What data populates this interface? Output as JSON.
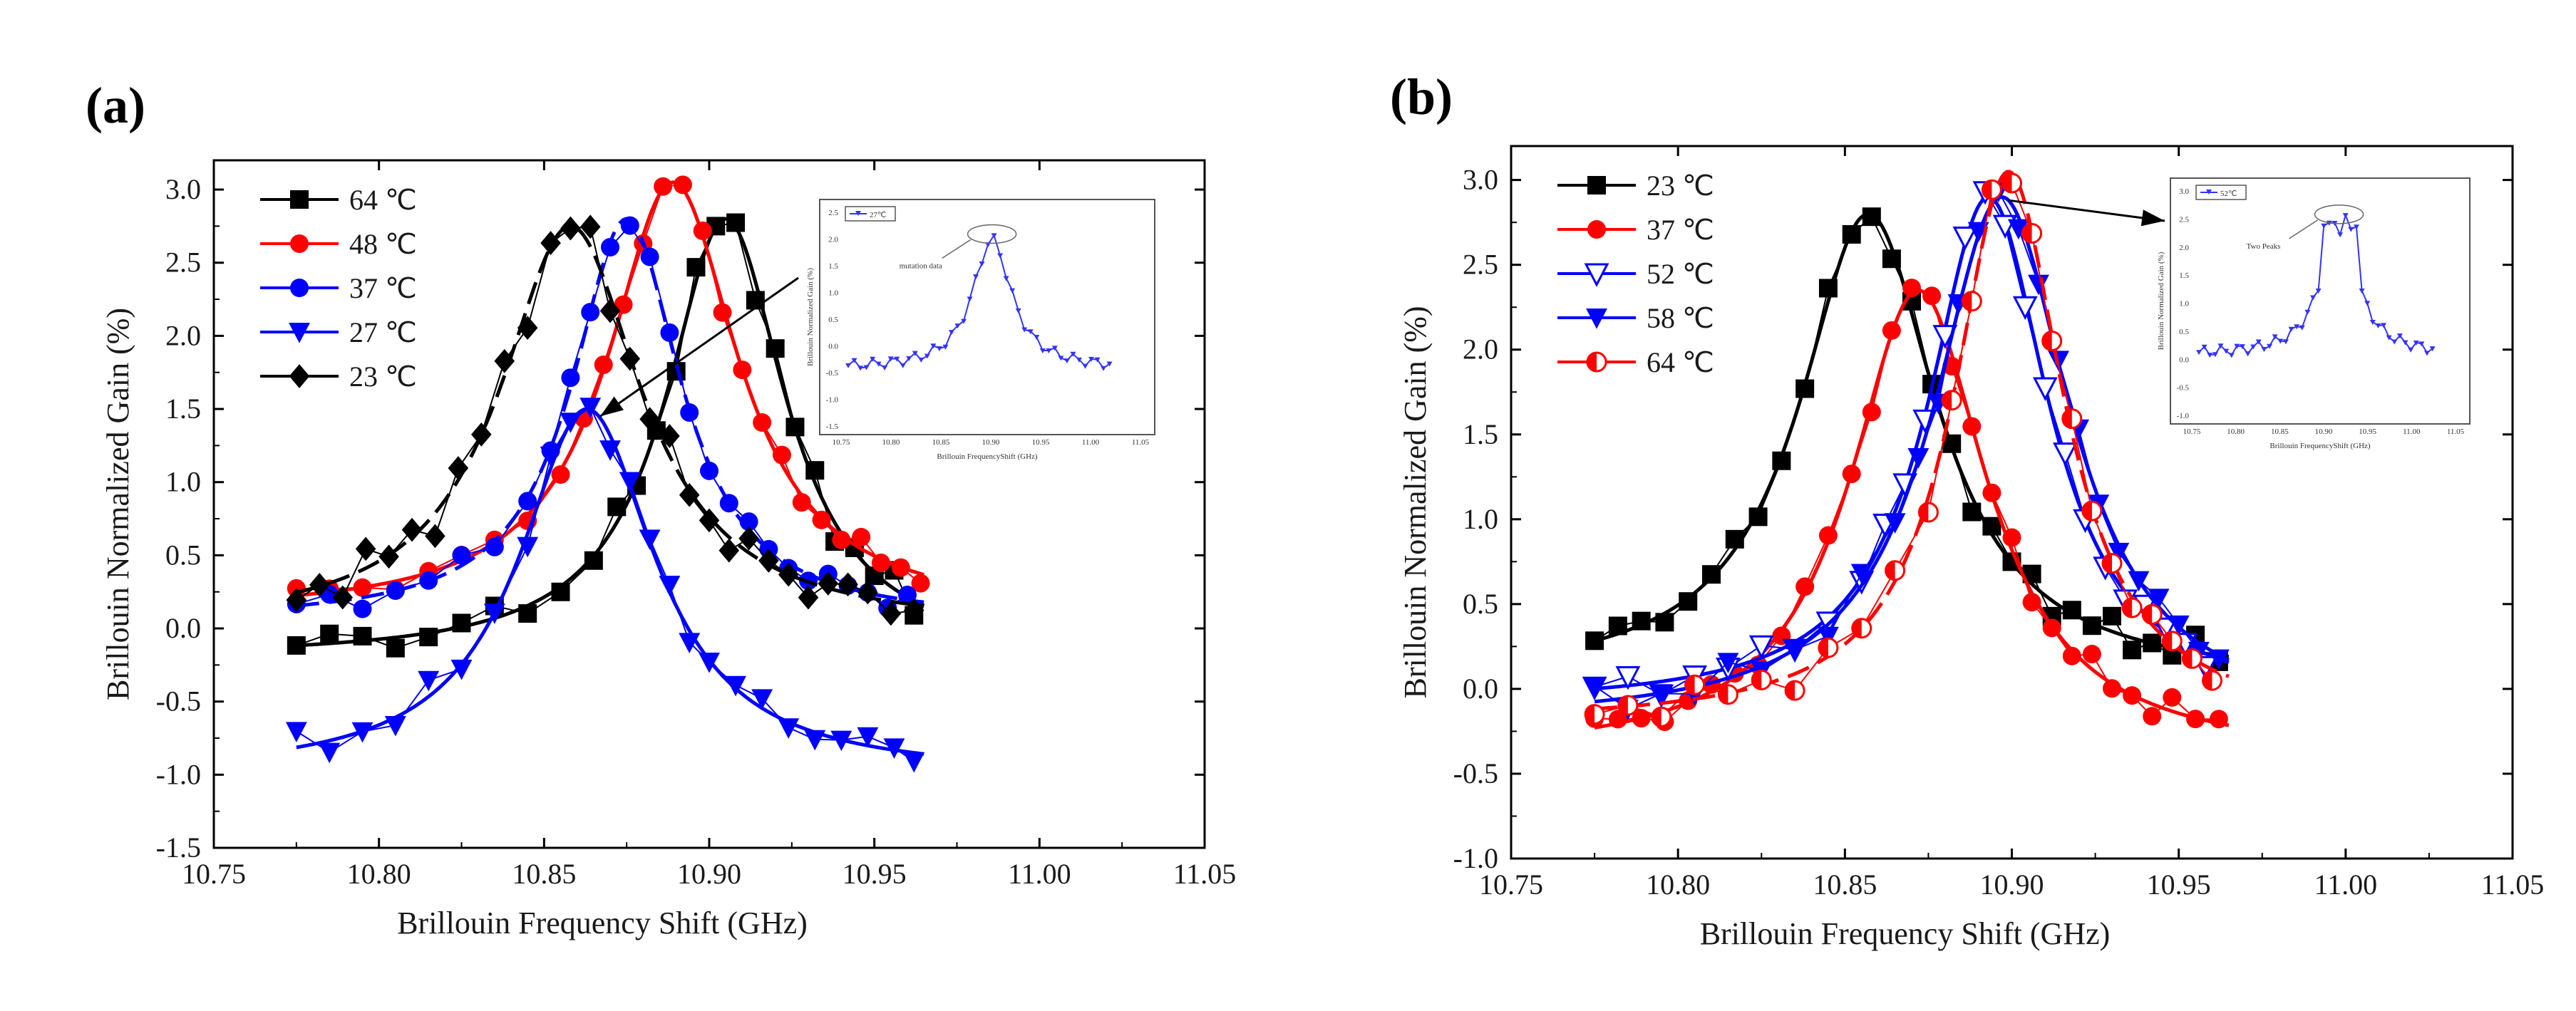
{
  "chart_data": [
    {
      "type": "scatter",
      "panel_label": "(a)",
      "xlabel": "Brillouin Frequency Shift (GHz)",
      "ylabel": "Brillouin Normalized Gain (%)",
      "xlim": [
        10.75,
        11.05
      ],
      "ylim": [
        -1.5,
        3.2
      ],
      "xticks": [
        10.75,
        10.8,
        10.85,
        10.9,
        10.95,
        11.0,
        11.05
      ],
      "xtick_labels": [
        "10.75",
        "10.80",
        "10.85",
        "10.90",
        "10.95",
        "11.00",
        "11.05"
      ],
      "yticks": [
        -1.5,
        -1.0,
        -0.5,
        0.0,
        0.5,
        1.0,
        1.5,
        2.0,
        2.5,
        3.0
      ],
      "ytick_labels": [
        "-1.5",
        "-1.0",
        "-0.5",
        "0.0",
        "0.5",
        "1.0",
        "1.5",
        "2.0",
        "2.5",
        "3.0"
      ],
      "legend_position": "top-left",
      "series": [
        {
          "name": "64 ℃",
          "color": "#000000",
          "marker": "square",
          "fit": {
            "center": 10.905,
            "peak": 2.8,
            "gamma": 0.022,
            "base": -0.2,
            "dash": "solid"
          },
          "noise": 0.14,
          "x": [
            10.775,
            10.785,
            10.795,
            10.805,
            10.815,
            10.825,
            10.835,
            10.845,
            10.855,
            10.865,
            10.872,
            10.878,
            10.884,
            10.89,
            10.896,
            10.902,
            10.908,
            10.914,
            10.92,
            10.926,
            10.932,
            10.938,
            10.944,
            10.95,
            10.956,
            10.962
          ]
        },
        {
          "name": "48 ℃",
          "color": "#ff0000",
          "marker": "circle",
          "fit": {
            "center": 10.889,
            "peak": 3.05,
            "gamma": 0.024,
            "base": 0.1,
            "dash": "solid"
          },
          "noise": 0.09,
          "x": [
            10.775,
            10.785,
            10.795,
            10.805,
            10.815,
            10.825,
            10.835,
            10.845,
            10.855,
            10.862,
            10.868,
            10.874,
            10.88,
            10.886,
            10.892,
            10.898,
            10.904,
            10.91,
            10.916,
            10.922,
            10.928,
            10.934,
            10.94,
            10.946,
            10.952,
            10.958,
            10.964
          ]
        },
        {
          "name": "37 ℃",
          "color": "#0000ff",
          "marker": "circle",
          "fit": {
            "center": 10.875,
            "peak": 2.8,
            "gamma": 0.02,
            "base": 0.05,
            "dash": "dashed"
          },
          "noise": 0.1,
          "x": [
            10.775,
            10.785,
            10.795,
            10.805,
            10.815,
            10.825,
            10.835,
            10.845,
            10.852,
            10.858,
            10.864,
            10.87,
            10.876,
            10.882,
            10.888,
            10.894,
            10.9,
            10.906,
            10.912,
            10.918,
            10.924,
            10.93,
            10.936,
            10.942,
            10.948,
            10.954,
            10.96
          ]
        },
        {
          "name": "27 ℃",
          "color": "#0000ff",
          "marker": "triangle-down",
          "fit": {
            "center": 10.863,
            "peak": 1.5,
            "gamma": 0.025,
            "base": -1.0,
            "dash": "solid"
          },
          "noise": 0.12,
          "x": [
            10.775,
            10.785,
            10.795,
            10.805,
            10.815,
            10.825,
            10.835,
            10.845,
            10.852,
            10.858,
            10.864,
            10.87,
            10.876,
            10.882,
            10.888,
            10.894,
            10.9,
            10.908,
            10.916,
            10.924,
            10.932,
            10.94,
            10.948,
            10.956,
            10.962
          ]
        },
        {
          "name": "23 ℃",
          "color": "#000000",
          "marker": "diamond",
          "fit": {
            "center": 10.858,
            "peak": 2.75,
            "gamma": 0.026,
            "base": 0.0,
            "dash": "dashed"
          },
          "noise": 0.16,
          "x": [
            10.775,
            10.782,
            10.789,
            10.796,
            10.803,
            10.81,
            10.817,
            10.824,
            10.831,
            10.838,
            10.845,
            10.852,
            10.858,
            10.864,
            10.87,
            10.876,
            10.882,
            10.888,
            10.894,
            10.9,
            10.906,
            10.912,
            10.918,
            10.924,
            10.93,
            10.936,
            10.942,
            10.948,
            10.955,
            10.962
          ]
        }
      ],
      "inset": {
        "legend": "27℃",
        "annotation": "mutation data",
        "ylabel": "Brillouin Normalized Gain (%)",
        "xlabel": "Brillouin FrequencyShift (GHz)",
        "xticks": [
          "10.75",
          "10.80",
          "10.85",
          "10.90",
          "10.95",
          "11.00",
          "11.05"
        ],
        "yticks": [
          "2.5",
          "2.0",
          "1.5",
          "1.0",
          "0.5",
          "0.0",
          "-0.5",
          "-1.0",
          "-1.5"
        ]
      }
    },
    {
      "type": "scatter",
      "panel_label": "(b)",
      "xlabel": "Brillouin Frequency Shift (GHz)",
      "ylabel": "Brillouin Normalized Gain (%)",
      "xlim": [
        10.75,
        11.05
      ],
      "ylim": [
        -1.0,
        3.2
      ],
      "xticks": [
        10.75,
        10.8,
        10.85,
        10.9,
        10.95,
        11.0,
        11.05
      ],
      "xtick_labels": [
        "10.75",
        "10.80",
        "10.85",
        "10.90",
        "10.95",
        "11.00",
        "11.05"
      ],
      "yticks": [
        -1.0,
        -0.5,
        0.0,
        0.5,
        1.0,
        1.5,
        2.0,
        2.5,
        3.0
      ],
      "ytick_labels": [
        "-1.0",
        "-0.5",
        "0.0",
        "0.5",
        "1.0",
        "1.5",
        "2.0",
        "2.5",
        "3.0"
      ],
      "legend_position": "top-left",
      "series": [
        {
          "name": "23 ℃",
          "color": "#000000",
          "marker": "square",
          "fit": {
            "center": 10.857,
            "peak": 2.8,
            "gamma": 0.025,
            "base": 0.05,
            "dash": "solid"
          },
          "noise": 0.1,
          "x": [
            10.775,
            10.782,
            10.789,
            10.796,
            10.803,
            10.81,
            10.817,
            10.824,
            10.831,
            10.838,
            10.845,
            10.852,
            10.858,
            10.864,
            10.87,
            10.876,
            10.882,
            10.888,
            10.894,
            10.9,
            10.906,
            10.912,
            10.918,
            10.924,
            10.93,
            10.936,
            10.942,
            10.948,
            10.955,
            10.962
          ]
        },
        {
          "name": "37 ℃",
          "color": "#ff0000",
          "marker": "circle",
          "fit": {
            "center": 10.872,
            "peak": 2.35,
            "gamma": 0.025,
            "base": -0.4,
            "dash": "solid"
          },
          "noise": 0.1,
          "x": [
            10.775,
            10.782,
            10.789,
            10.796,
            10.803,
            10.81,
            10.817,
            10.824,
            10.831,
            10.838,
            10.845,
            10.852,
            10.858,
            10.864,
            10.87,
            10.876,
            10.882,
            10.888,
            10.894,
            10.9,
            10.906,
            10.912,
            10.918,
            10.924,
            10.93,
            10.936,
            10.942,
            10.948,
            10.955,
            10.962
          ]
        },
        {
          "name": "52 ℃",
          "color": "#0000ff",
          "marker": "triangle-down-open",
          "fit": {
            "center": 10.893,
            "peak": 2.9,
            "gamma": 0.022,
            "base": -0.1,
            "dash": "solid"
          },
          "noise": 0.1,
          "x": [
            10.775,
            10.785,
            10.795,
            10.805,
            10.815,
            10.825,
            10.835,
            10.845,
            10.855,
            10.862,
            10.868,
            10.874,
            10.88,
            10.886,
            10.892,
            10.898,
            10.904,
            10.91,
            10.916,
            10.922,
            10.928,
            10.934,
            10.94,
            10.946,
            10.952,
            10.958
          ]
        },
        {
          "name": "58 ℃",
          "color": "#0000ff",
          "marker": "triangle-down",
          "fit": {
            "center": 10.897,
            "peak": 2.9,
            "gamma": 0.025,
            "base": -0.2,
            "dash": "solid"
          },
          "noise": 0.1,
          "x": [
            10.775,
            10.785,
            10.795,
            10.805,
            10.815,
            10.825,
            10.835,
            10.845,
            10.855,
            10.865,
            10.872,
            10.878,
            10.884,
            10.89,
            10.896,
            10.902,
            10.908,
            10.914,
            10.92,
            10.926,
            10.932,
            10.938,
            10.944,
            10.95,
            10.956,
            10.962
          ]
        },
        {
          "name": "64 ℃",
          "color": "#ff0000",
          "marker": "half-circle",
          "fit": {
            "center": 10.899,
            "peak": 3.05,
            "gamma": 0.02,
            "base": -0.2,
            "dash": "dashed"
          },
          "noise": 0.1,
          "x": [
            10.775,
            10.785,
            10.795,
            10.805,
            10.815,
            10.825,
            10.835,
            10.845,
            10.855,
            10.865,
            10.875,
            10.882,
            10.888,
            10.894,
            10.9,
            10.906,
            10.912,
            10.918,
            10.924,
            10.93,
            10.936,
            10.942,
            10.948,
            10.954,
            10.96
          ]
        }
      ],
      "inset": {
        "legend": "52℃",
        "annotation": "Two Peaks",
        "ylabel": "Brillouin Normalized Gain (%)",
        "xlabel": "Brillouin FrequencyShift (GHz)",
        "xticks": [
          "10.75",
          "10.80",
          "10.85",
          "10.90",
          "10.95",
          "11.00",
          "11.05"
        ],
        "yticks": [
          "3.0",
          "2.5",
          "2.0",
          "1.5",
          "1.0",
          "0.5",
          "0.0",
          "-0.5",
          "-1.0"
        ]
      }
    }
  ]
}
